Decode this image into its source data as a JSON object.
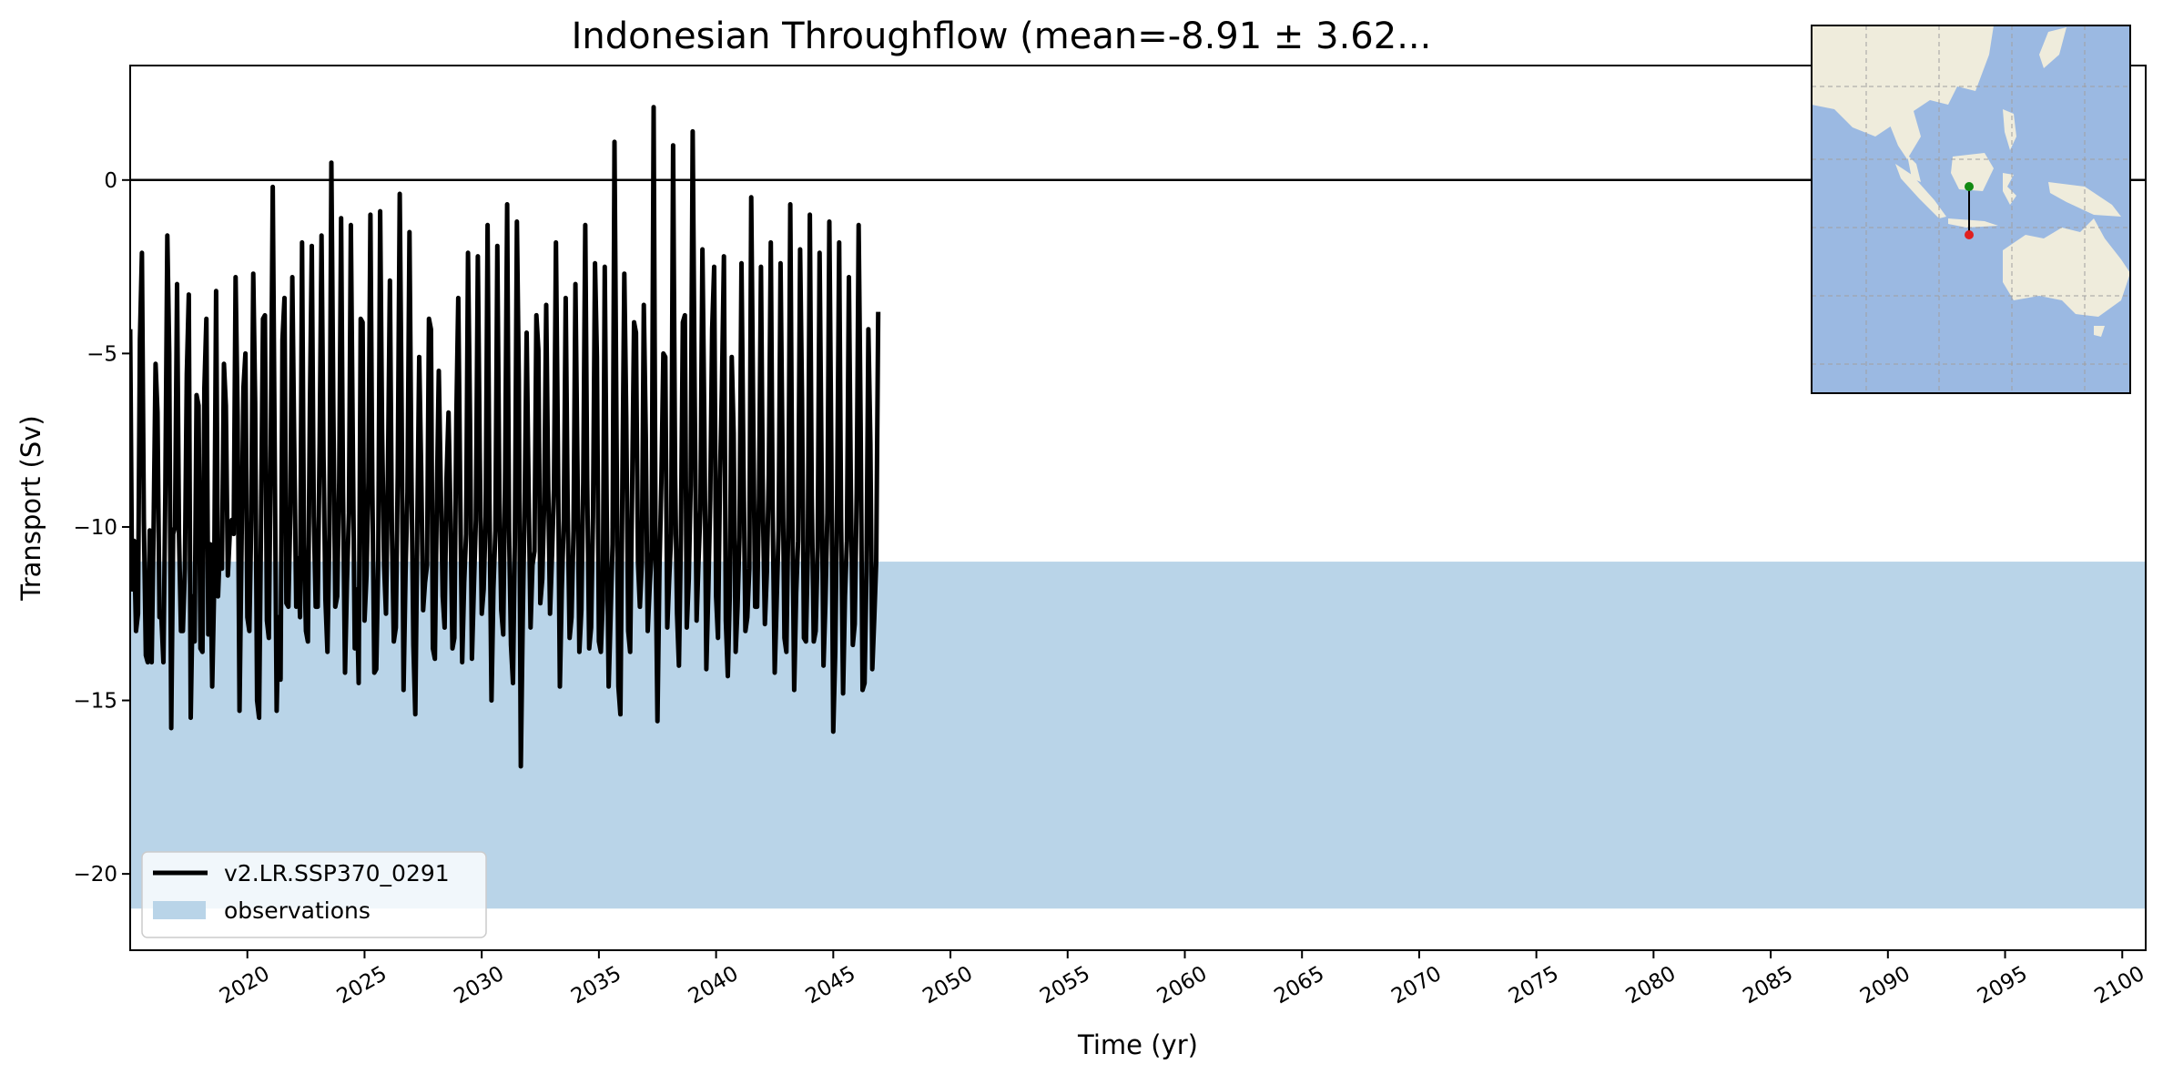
{
  "chart_data": {
    "type": "line",
    "title": "Indonesian Throughflow (mean=-8.91 ± 3.62...",
    "xlabel": "Time (yr)",
    "ylabel": "Transport (Sv)",
    "xlim": [
      2015.0,
      2101.0
    ],
    "ylim": [
      -22.2,
      3.3
    ],
    "x_ticks": [
      2020,
      2025,
      2030,
      2035,
      2040,
      2045,
      2050,
      2055,
      2060,
      2065,
      2070,
      2075,
      2080,
      2085,
      2090,
      2095,
      2100
    ],
    "x_tick_labels": [
      "2020",
      "2025",
      "2030",
      "2035",
      "2040",
      "2045",
      "2050",
      "2055",
      "2060",
      "2065",
      "2070",
      "2075",
      "2080",
      "2085",
      "2090",
      "2095",
      "2100"
    ],
    "y_ticks": [
      0,
      -5,
      -10,
      -15,
      -20
    ],
    "y_tick_labels": [
      "0",
      "−5",
      "−10",
      "−15",
      "−20"
    ],
    "reference_line_y": 0,
    "observations_band": {
      "name": "observations",
      "ymin": -21.0,
      "ymax": -11.0,
      "color": "#b9d4e8"
    },
    "series": [
      {
        "name": "v2.LR.SSP370_0291",
        "color": "#000000",
        "start_year": 2015.0,
        "step_years": 0.08333333,
        "values": [
          -4.3,
          -11.8,
          -10.4,
          -13.0,
          -12.5,
          -4.6,
          -2.1,
          -9.8,
          -13.7,
          -13.9,
          -10.1,
          -13.9,
          -10.1,
          -5.3,
          -6.7,
          -12.6,
          -12.6,
          -13.9,
          -9.0,
          -1.6,
          -5.0,
          -15.8,
          -10.2,
          -10.0,
          -3.0,
          -10.2,
          -13.0,
          -13.0,
          -11.2,
          -5.6,
          -3.3,
          -15.5,
          -12.0,
          -13.3,
          -6.2,
          -6.5,
          -13.5,
          -13.6,
          -6.0,
          -4.0,
          -13.1,
          -10.5,
          -14.6,
          -11.8,
          -3.2,
          -12.0,
          -10.5,
          -11.2,
          -5.3,
          -6.5,
          -11.4,
          -10.2,
          -9.8,
          -10.2,
          -2.8,
          -6.8,
          -15.3,
          -10.6,
          -6.0,
          -5.0,
          -12.6,
          -13.0,
          -9.8,
          -2.7,
          -6.4,
          -15.0,
          -15.5,
          -10.0,
          -4.0,
          -3.9,
          -12.7,
          -13.2,
          -7.6,
          -0.2,
          -8.0,
          -15.3,
          -12.6,
          -14.4,
          -4.6,
          -3.4,
          -12.2,
          -12.3,
          -9.6,
          -2.8,
          -7.6,
          -12.3,
          -10.9,
          -12.6,
          -1.8,
          -10.5,
          -13.0,
          -13.3,
          -6.6,
          -1.9,
          -9.7,
          -12.3,
          -12.3,
          -7.6,
          -1.6,
          -8.0,
          -12.1,
          -13.6,
          -10.2,
          0.5,
          -6.4,
          -12.3,
          -12.0,
          -8.7,
          -1.1,
          -9.0,
          -14.2,
          -11.6,
          -9.6,
          -1.3,
          -7.7,
          -13.5,
          -11.8,
          -14.5,
          -4.0,
          -4.1,
          -12.7,
          -11.4,
          -8.7,
          -1.0,
          -8.8,
          -14.2,
          -14.1,
          -11.0,
          -0.9,
          -7.2,
          -11.1,
          -12.5,
          -8.3,
          -2.9,
          -10.1,
          -13.3,
          -12.9,
          -8.5,
          -0.4,
          -6.7,
          -14.7,
          -11.3,
          -9.0,
          -1.5,
          -8.3,
          -13.4,
          -15.4,
          -10.0,
          -5.1,
          -8.4,
          -12.4,
          -11.6,
          -11.1,
          -4.0,
          -4.3,
          -13.5,
          -13.8,
          -9.3,
          -5.5,
          -8.7,
          -12.0,
          -12.9,
          -8.6,
          -6.7,
          -9.6,
          -13.5,
          -13.2,
          -6.8,
          -3.4,
          -9.2,
          -13.9,
          -11.6,
          -10.2,
          -2.1,
          -6.9,
          -13.8,
          -11.7,
          -9.8,
          -2.2,
          -7.9,
          -12.5,
          -11.8,
          -9.7,
          -1.3,
          -9.3,
          -15.0,
          -11.8,
          -10.1,
          -1.9,
          -9.0,
          -12.4,
          -13.1,
          -8.4,
          -0.7,
          -10.1,
          -13.4,
          -14.5,
          -10.3,
          -1.2,
          -5.8,
          -16.9,
          -12.7,
          -9.2,
          -4.4,
          -9.0,
          -12.9,
          -11.1,
          -10.7,
          -3.9,
          -4.9,
          -12.2,
          -11.5,
          -9.3,
          -3.6,
          -8.6,
          -12.5,
          -10.8,
          -8.9,
          -1.8,
          -7.6,
          -14.6,
          -11.8,
          -9.8,
          -3.4,
          -9.5,
          -13.2,
          -12.6,
          -10.1,
          -3.0,
          -8.2,
          -13.6,
          -12.4,
          -8.7,
          -1.3,
          -8.6,
          -13.5,
          -12.9,
          -9.7,
          -2.4,
          -5.1,
          -13.3,
          -13.6,
          -12.1,
          -2.5,
          -9.6,
          -14.6,
          -12.5,
          -10.5,
          1.1,
          -7.2,
          -14.6,
          -15.4,
          -9.0,
          -2.7,
          -6.8,
          -13.0,
          -13.6,
          -8.9,
          -4.1,
          -4.4,
          -11.0,
          -12.3,
          -11.0,
          -3.6,
          -7.4,
          -13.0,
          -11.7,
          -10.7,
          2.1,
          -10.5,
          -15.6,
          -11.2,
          -8.7,
          -5.0,
          -5.1,
          -12.9,
          -11.5,
          -10.2,
          1.0,
          -8.5,
          -12.5,
          -14.0,
          -10.2,
          -4.1,
          -3.9,
          -12.9,
          -11.5,
          -8.8,
          1.4,
          -5.8,
          -12.7,
          -11.0,
          -9.5,
          -2.0,
          -7.0,
          -14.1,
          -11.9,
          -9.2,
          -4.3,
          -2.5,
          -12.0,
          -13.2,
          -8.6,
          -6.0,
          -2.2,
          -12.7,
          -14.3,
          -12.0,
          -5.1,
          -7.3,
          -13.6,
          -12.3,
          -10.3,
          -2.4,
          -8.0,
          -13.0,
          -12.6,
          -11.2,
          -0.5,
          -6.8,
          -12.3,
          -12.3,
          -9.1,
          -2.5,
          -9.5,
          -12.8,
          -11.3,
          -8.5,
          -1.8,
          -9.6,
          -14.2,
          -12.2,
          -10.1,
          -2.4,
          -7.7,
          -13.2,
          -13.6,
          -9.7,
          -0.7,
          -9.4,
          -14.7,
          -11.9,
          -10.4,
          -2.0,
          -6.3,
          -13.2,
          -13.3,
          -10.7,
          -1.0,
          -9.1,
          -13.3,
          -13.0,
          -10.6,
          -2.1,
          -8.3,
          -14.0,
          -12.2,
          -9.6,
          -1.2,
          -7.9,
          -15.9,
          -13.6,
          -9.1,
          -1.8,
          -9.7,
          -14.8,
          -12.0,
          -10.4,
          -2.8,
          -8.8,
          -13.4,
          -12.8,
          -9.0,
          -1.3,
          -7.1,
          -14.7,
          -14.5,
          -11.3,
          -4.3,
          -7.6,
          -14.1,
          -12.6,
          -11.0,
          -3.8
        ]
      }
    ],
    "legend": {
      "placement": "lower-left",
      "entries": [
        "v2.LR.SSP370_0291",
        "observations"
      ]
    },
    "inset_map": {
      "land_color": "#efecdc",
      "ocean_color": "#9bb9e2",
      "gridlines": true,
      "section_start_color": "#128a12",
      "section_end_color": "#e02020"
    }
  }
}
